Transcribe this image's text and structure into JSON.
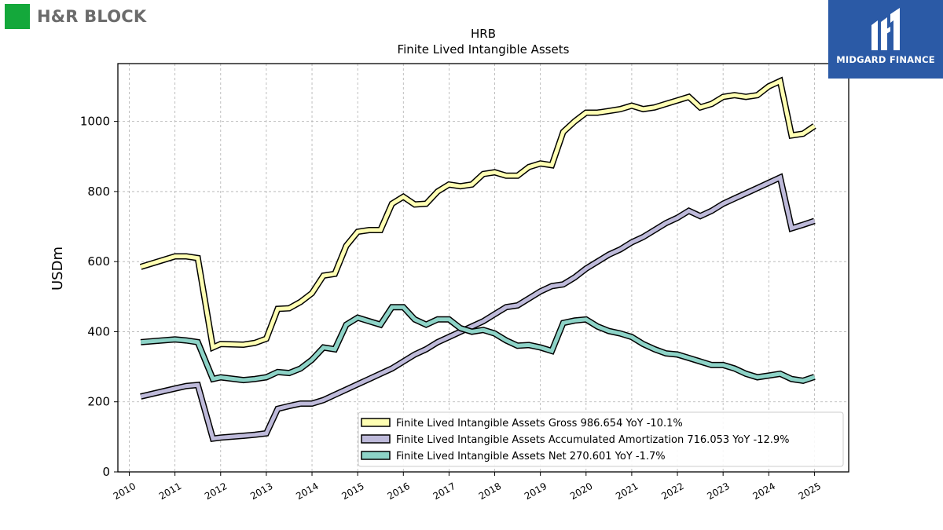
{
  "brand_left": {
    "name": "H&R BLOCK",
    "color": "#14a83b"
  },
  "brand_right": {
    "name": "MIDGARD FINANCE",
    "color": "#2b5aa6"
  },
  "chart_data": {
    "type": "line",
    "title": "HRB",
    "subtitle": "Finite Lived Intangible Assets",
    "ylabel": "USDm",
    "xlabel": "",
    "xlim": [
      2009.75,
      2025.75
    ],
    "ylim": [
      0,
      1165
    ],
    "yticks": [
      0,
      200,
      400,
      600,
      800,
      1000
    ],
    "xticks": [
      2010,
      2011,
      2012,
      2013,
      2014,
      2015,
      2016,
      2017,
      2018,
      2019,
      2020,
      2021,
      2022,
      2023,
      2024,
      2025
    ],
    "grid": true,
    "legend_position": "bottom-right",
    "x": [
      2010.25,
      2011.0,
      2011.25,
      2011.5,
      2011.83,
      2012.0,
      2012.5,
      2012.75,
      2013.0,
      2013.25,
      2013.5,
      2013.75,
      2014.0,
      2014.25,
      2014.5,
      2014.75,
      2015.0,
      2015.25,
      2015.5,
      2015.75,
      2016.0,
      2016.25,
      2016.5,
      2016.75,
      2017.0,
      2017.25,
      2017.5,
      2017.75,
      2018.0,
      2018.25,
      2018.5,
      2018.75,
      2019.0,
      2019.25,
      2019.5,
      2019.75,
      2020.0,
      2020.25,
      2020.5,
      2020.75,
      2021.0,
      2021.25,
      2021.5,
      2021.75,
      2022.0,
      2022.25,
      2022.5,
      2022.75,
      2023.0,
      2023.25,
      2023.5,
      2023.75,
      2024.0,
      2024.25,
      2024.5,
      2024.75,
      2025.0
    ],
    "series": [
      {
        "name": "Finite Lived Intangible Assets Gross",
        "legend": "Finite Lived Intangible Assets Gross  986.654 YoY -10.1%",
        "color": "#ffffb3",
        "values": [
          585,
          615,
          615,
          610,
          355,
          365,
          363,
          368,
          380,
          465,
          467,
          485,
          510,
          560,
          565,
          645,
          685,
          690,
          690,
          765,
          785,
          763,
          765,
          800,
          820,
          815,
          820,
          850,
          855,
          845,
          845,
          870,
          880,
          875,
          970,
          1000,
          1025,
          1025,
          1030,
          1035,
          1045,
          1035,
          1040,
          1050,
          1060,
          1070,
          1040,
          1050,
          1070,
          1075,
          1070,
          1075,
          1100,
          1115,
          960,
          965,
          987
        ]
      },
      {
        "name": "Finite Lived Intangible Assets Accumulated Amortization",
        "legend": "Finite Lived Intangible Assets Accumulated Amortization  716.053 YoY -12.9%",
        "color": "#bebada",
        "values": [
          215,
          238,
          245,
          248,
          95,
          98,
          103,
          106,
          110,
          180,
          188,
          195,
          195,
          205,
          220,
          235,
          250,
          265,
          280,
          295,
          315,
          335,
          350,
          370,
          385,
          400,
          415,
          430,
          450,
          470,
          475,
          495,
          515,
          530,
          535,
          555,
          580,
          600,
          620,
          635,
          655,
          670,
          690,
          710,
          725,
          745,
          730,
          745,
          765,
          780,
          795,
          810,
          825,
          840,
          695,
          705,
          716
        ]
      },
      {
        "name": "Finite Lived Intangible Assets Net",
        "legend": "Finite Lived Intangible Assets Net  270.601 YoY -1.7%",
        "color": "#8dd3c7",
        "values": [
          370,
          378,
          375,
          370,
          265,
          270,
          262,
          265,
          270,
          285,
          282,
          295,
          320,
          355,
          350,
          420,
          440,
          430,
          420,
          470,
          470,
          435,
          420,
          435,
          435,
          410,
          400,
          405,
          395,
          375,
          360,
          362,
          355,
          345,
          425,
          432,
          435,
          415,
          402,
          395,
          385,
          365,
          350,
          338,
          335,
          325,
          315,
          305,
          305,
          295,
          280,
          270,
          275,
          280,
          265,
          260,
          271
        ]
      }
    ]
  }
}
